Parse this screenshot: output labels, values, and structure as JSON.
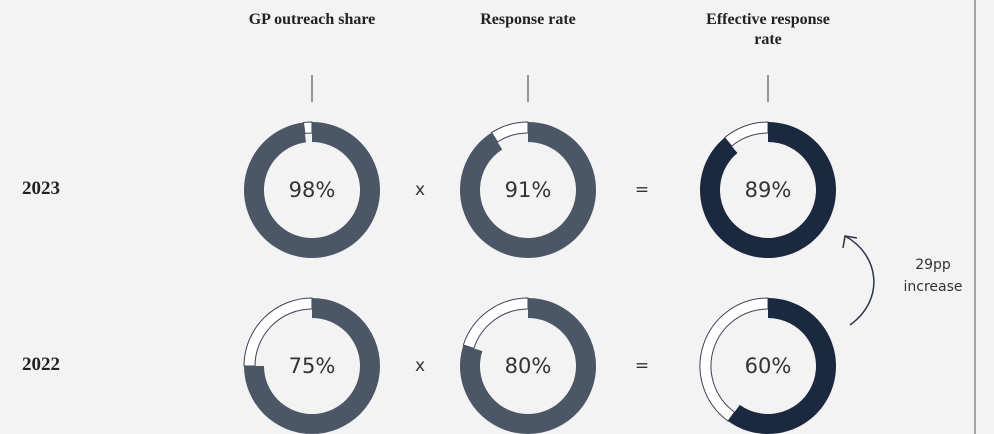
{
  "chart_data": {
    "type": "donut",
    "columns": [
      "GP outreach share",
      "Response rate",
      "Effective response rate"
    ],
    "operators": [
      "x",
      "="
    ],
    "rows": [
      {
        "label": "2023",
        "values": [
          98,
          91,
          89
        ],
        "value_labels": [
          "98%",
          "91%",
          "89%"
        ]
      },
      {
        "label": "2022",
        "values": [
          75,
          80,
          60
        ],
        "value_labels": [
          "75%",
          "80%",
          "60%"
        ]
      }
    ],
    "colors": [
      "#4b5667",
      "#4b5667",
      "#1b2940"
    ],
    "max": 100,
    "annotation": "29pp increase"
  }
}
